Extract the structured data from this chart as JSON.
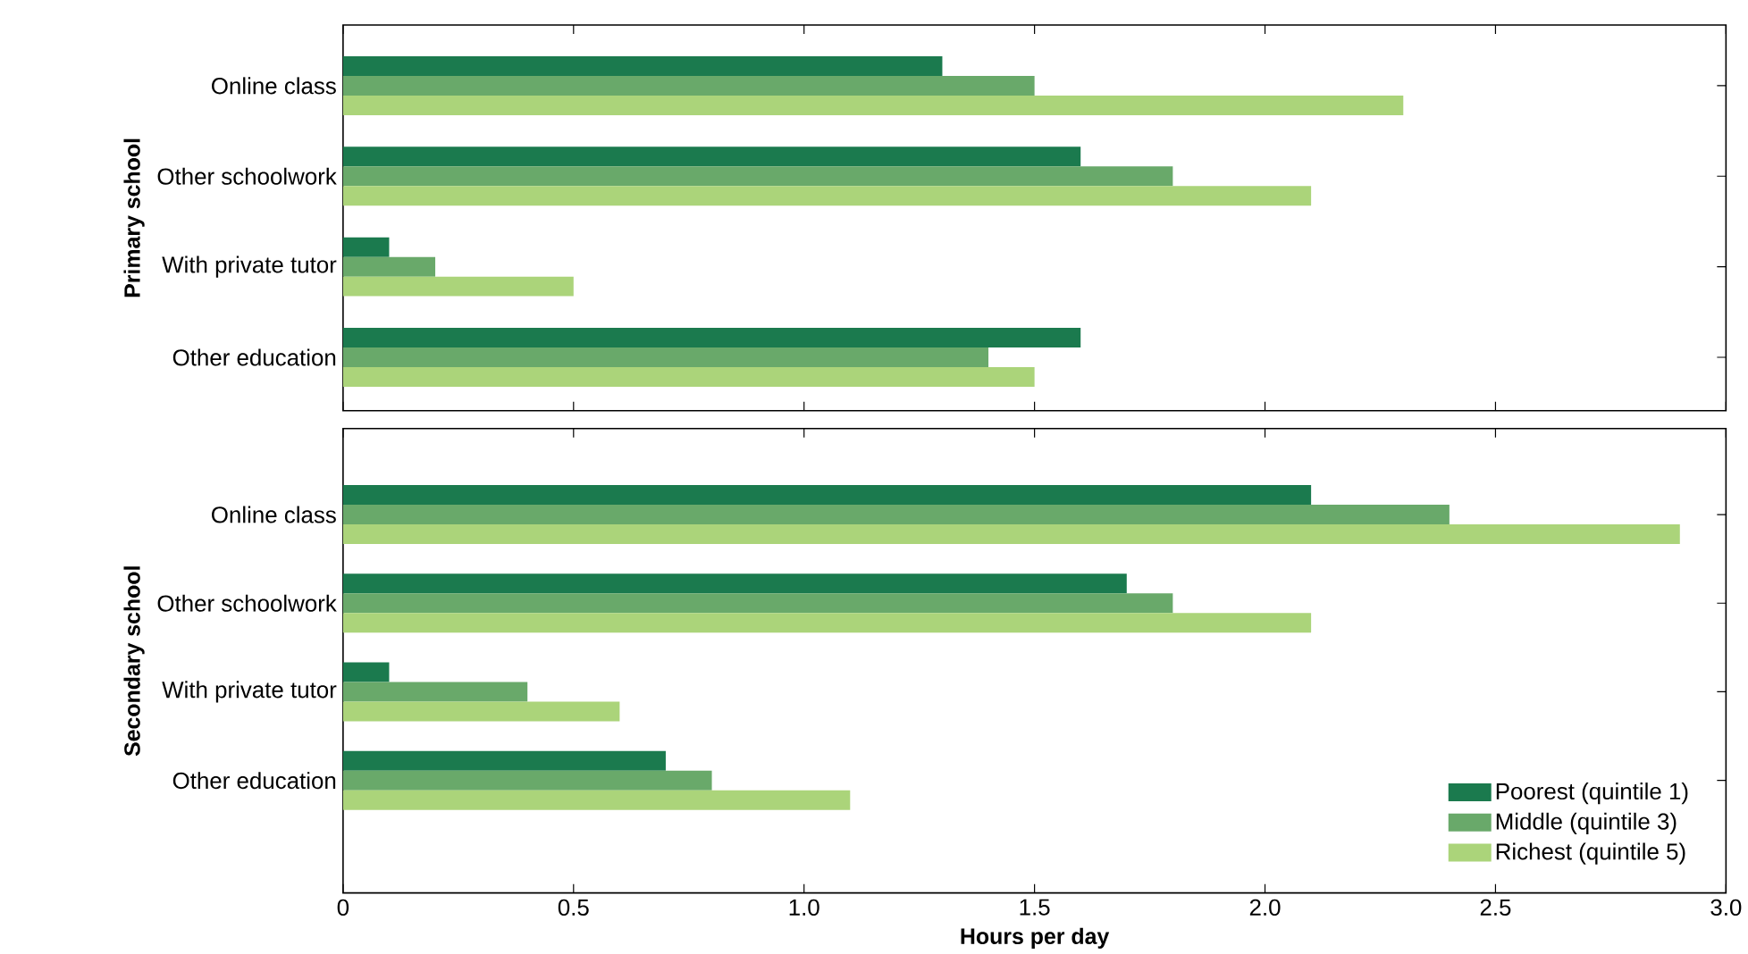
{
  "chart_data": [
    {
      "type": "bar",
      "orientation": "horizontal",
      "ylabel": "Primary school",
      "categories": [
        "Online class",
        "Other schoolwork",
        "With private tutor",
        "Other education"
      ],
      "series": [
        {
          "color": "#1b7a4e",
          "values": [
            1.3,
            1.6,
            0.1,
            1.6
          ]
        },
        {
          "color": "#69a96a",
          "values": [
            1.5,
            1.8,
            0.2,
            1.4
          ]
        },
        {
          "color": "#abd47a",
          "values": [
            2.3,
            2.1,
            0.5,
            1.5
          ]
        }
      ],
      "xlim": [
        0,
        3.0
      ],
      "xticks": [
        0,
        0.5,
        1,
        1.5,
        2,
        2.5,
        3
      ],
      "tick_labels": "y",
      "legend": false
    },
    {
      "type": "bar",
      "orientation": "horizontal",
      "ylabel": "Secondary school",
      "xlabel": "Hours per day",
      "categories": [
        "Online class",
        "Other schoolwork",
        "With private tutor",
        "Other education"
      ],
      "series": [
        {
          "name": "Poorest (quintile 1)",
          "color": "#1b7a4e",
          "values": [
            2.1,
            1.7,
            0.1,
            0.7
          ]
        },
        {
          "name": "Middle (quintile 3)",
          "color": "#69a96a",
          "values": [
            2.4,
            1.8,
            0.4,
            0.8
          ]
        },
        {
          "name": "Richest (quintile 5)",
          "color": "#abd47a",
          "values": [
            2.9,
            2.1,
            0.6,
            1.1
          ]
        }
      ],
      "xlim": [
        0,
        3.0
      ],
      "xticks": [
        0,
        0.5,
        {
          "value": 1,
          "label": "1.0"
        },
        1.5,
        {
          "value": 2,
          "label": "2.0"
        },
        2.5,
        {
          "value": 3,
          "label": "3.0"
        }
      ],
      "legend": "bottom right"
    }
  ]
}
